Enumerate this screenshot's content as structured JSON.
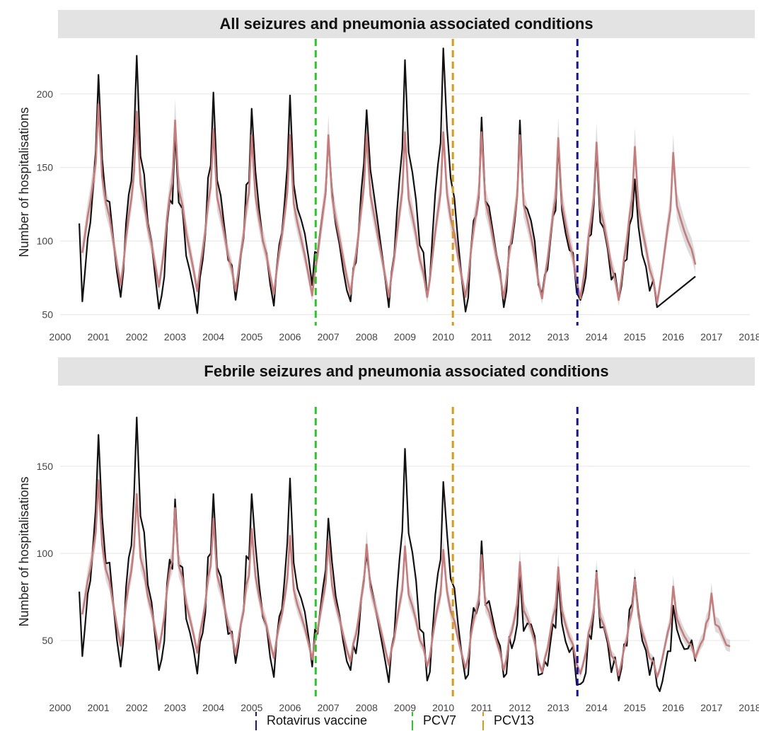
{
  "chart_data": [
    {
      "type": "line",
      "title": "All seizures and pneumonia associated conditions",
      "ylabel": "Number of hospitalisations",
      "xlabel": "",
      "xlim": [
        2000,
        2018
      ],
      "ylim": [
        45,
        235
      ],
      "yticks": [
        50,
        100,
        150,
        200
      ],
      "xticks": [
        2000,
        2001,
        2002,
        2003,
        2004,
        2005,
        2006,
        2007,
        2008,
        2009,
        2010,
        2011,
        2012,
        2013,
        2014,
        2015,
        2016,
        2017,
        2018
      ],
      "grid": true,
      "series": [
        {
          "kind": "observed",
          "color": "#111111",
          "peaks": [
            213,
            226,
            174,
            201,
            190,
            199,
            170,
            189,
            223,
            231,
            184,
            182,
            167,
            163,
            142
          ],
          "troughs": [
            59,
            62,
            54,
            51,
            60,
            56,
            70,
            59,
            55,
            62,
            52,
            55,
            64,
            60,
            60,
            55,
            76
          ],
          "start": 112
        },
        {
          "kind": "fitted",
          "color": "#c97b7b",
          "peaks": [
            193,
            188,
            182,
            176,
            172,
            172,
            172,
            173,
            174,
            174,
            174,
            172,
            170,
            167,
            164,
            160
          ],
          "troughs": [
            92,
            70,
            69,
            66,
            66,
            64,
            63,
            64,
            62,
            62,
            62,
            61,
            61,
            61,
            60,
            58,
            84
          ]
        }
      ],
      "vlines": [
        {
          "x": 2006.67,
          "color": "#22cc22"
        },
        {
          "x": 2010.25,
          "color": "#dd9911"
        },
        {
          "x": 2013.5,
          "color": "#1111aa"
        }
      ]
    },
    {
      "type": "line",
      "title": "Febrile seizures and pneumonia associated conditions",
      "ylabel": "Number of hospitalisations",
      "xlabel": "",
      "xlim": [
        2000,
        2018
      ],
      "ylim": [
        20,
        182
      ],
      "yticks": [
        50,
        100,
        150
      ],
      "xticks": [
        2000,
        2001,
        2002,
        2003,
        2004,
        2005,
        2006,
        2007,
        2008,
        2009,
        2010,
        2011,
        2012,
        2013,
        2014,
        2015,
        2016,
        2017,
        2018
      ],
      "grid": true,
      "series": [
        {
          "kind": "observed",
          "color": "#111111",
          "peaks": [
            168,
            178,
            131,
            134,
            134,
            143,
            120,
            100,
            160,
            141,
            107,
            89,
            86,
            90,
            86,
            70
          ],
          "troughs": [
            41,
            35,
            33,
            31,
            37,
            29,
            35,
            33,
            26,
            27,
            28,
            29,
            31,
            25,
            27,
            24,
            38
          ],
          "start": 78
        },
        {
          "kind": "fitted",
          "color": "#c97b7b",
          "peaks": [
            142,
            134,
            126,
            120,
            114,
            110,
            107,
            105,
            104,
            102,
            99,
            95,
            92,
            89,
            85,
            81,
            77
          ],
          "troughs": [
            65,
            47,
            45,
            43,
            42,
            40,
            39,
            38,
            36,
            35,
            34,
            33,
            32,
            31,
            30,
            29,
            40
          ]
        }
      ],
      "vlines": [
        {
          "x": 2006.67,
          "color": "#22cc22"
        },
        {
          "x": 2010.25,
          "color": "#dd9911"
        },
        {
          "x": 2013.5,
          "color": "#1111aa"
        }
      ]
    }
  ],
  "legend": {
    "items": [
      {
        "label": "Rotavirus vaccine",
        "color": "#1111aa"
      },
      {
        "label": "PCV7",
        "color": "#22cc22"
      },
      {
        "label": "PCV13",
        "color": "#dd9911"
      }
    ]
  }
}
